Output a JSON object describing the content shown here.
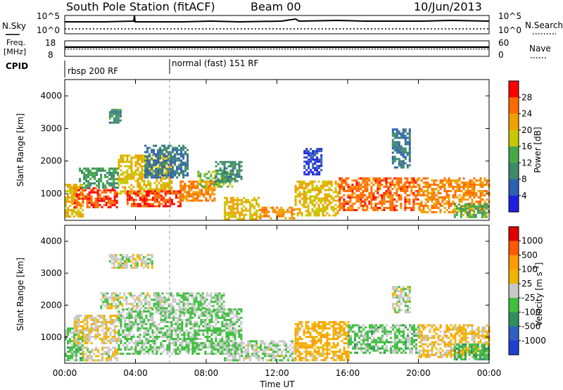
{
  "header": {
    "station": "South Pole Station (fitACF)",
    "beam": "Beam 00",
    "date": "10/Jun/2013"
  },
  "noise_panel": {
    "left_label": "N.Sky",
    "left_ticks": [
      "10^5",
      "10^0"
    ],
    "right_label": "N.Search",
    "right_ticks": [
      "10^5",
      "10^0"
    ]
  },
  "freq_panel": {
    "left_label_1": "Freq.",
    "left_label_2": "[MHz]",
    "left_ticks": [
      "18",
      "8"
    ],
    "right_label": "Nave",
    "right_ticks": [
      "60",
      "0"
    ]
  },
  "cpid": {
    "label": "CPID",
    "segments": [
      {
        "label": "rbsp 200 RF",
        "start_hour": 0
      },
      {
        "label": "normal (fast) 151 RF",
        "start_hour": 6
      }
    ]
  },
  "colors": {
    "power": [
      "#1f1fe0",
      "#2f5fb0",
      "#3f8a6a",
      "#47a84a",
      "#c8c800",
      "#f0a000",
      "#ff6a00",
      "#ff0000"
    ],
    "velocity": [
      "#e00000",
      "#ff5a00",
      "#ff9a00",
      "#f0b400",
      "#c8c8c8",
      "#3fbf3f",
      "#2f8f5f",
      "#2f5fbf",
      "#1f3fd0"
    ]
  },
  "chart_data": [
    {
      "type": "heatmap",
      "name": "power",
      "xlabel": "",
      "ylabel": "Slant Range [km]",
      "xlim": [
        0,
        24
      ],
      "ylim": [
        180,
        4500
      ],
      "yticks": [
        "1000",
        "2000",
        "3000",
        "4000"
      ],
      "colorbar": {
        "label": "Power [dB]",
        "ticks": [
          "28",
          "24",
          "20",
          "16",
          "12",
          "8",
          "4"
        ],
        "range": [
          0,
          32
        ]
      },
      "patches": [
        {
          "x0": 0.0,
          "x1": 1.0,
          "y0": 300,
          "y1": 1300,
          "level": 20
        },
        {
          "x0": 0.5,
          "x1": 3.0,
          "y0": 600,
          "y1": 1200,
          "level": 28
        },
        {
          "x0": 0.8,
          "x1": 3.0,
          "y0": 1200,
          "y1": 1800,
          "level": 12
        },
        {
          "x0": 2.5,
          "x1": 3.2,
          "y0": 3200,
          "y1": 3600,
          "level": 10
        },
        {
          "x0": 3.0,
          "x1": 6.0,
          "y0": 1000,
          "y1": 2200,
          "level": 20
        },
        {
          "x0": 3.5,
          "x1": 6.5,
          "y0": 600,
          "y1": 1100,
          "level": 28
        },
        {
          "x0": 4.5,
          "x1": 7.0,
          "y0": 1500,
          "y1": 2500,
          "level": 8
        },
        {
          "x0": 6.5,
          "x1": 8.5,
          "y0": 800,
          "y1": 1400,
          "level": 24
        },
        {
          "x0": 7.5,
          "x1": 9.5,
          "y0": 1200,
          "y1": 1700,
          "level": 16
        },
        {
          "x0": 8.5,
          "x1": 10.0,
          "y0": 1400,
          "y1": 2000,
          "level": 10
        },
        {
          "x0": 9.0,
          "x1": 11.0,
          "y0": 250,
          "y1": 900,
          "level": 20
        },
        {
          "x0": 11.0,
          "x1": 13.0,
          "y0": 250,
          "y1": 600,
          "level": 24
        },
        {
          "x0": 13.0,
          "x1": 15.5,
          "y0": 300,
          "y1": 1400,
          "level": 20
        },
        {
          "x0": 13.5,
          "x1": 14.5,
          "y0": 1600,
          "y1": 2400,
          "level": 4
        },
        {
          "x0": 15.5,
          "x1": 20.0,
          "y0": 500,
          "y1": 1500,
          "level": 26
        },
        {
          "x0": 18.5,
          "x1": 19.5,
          "y0": 1800,
          "y1": 3000,
          "level": 8
        },
        {
          "x0": 20.0,
          "x1": 24.0,
          "y0": 400,
          "y1": 1500,
          "level": 24
        },
        {
          "x0": 22.0,
          "x1": 24.0,
          "y0": 300,
          "y1": 700,
          "level": 14
        }
      ]
    },
    {
      "type": "heatmap",
      "name": "velocity",
      "xlabel": "Time UT",
      "ylabel": "Slant Range [km]",
      "xlim": [
        0,
        24
      ],
      "ylim": [
        180,
        4500
      ],
      "xticks": [
        "00:00",
        "04:00",
        "08:00",
        "12:00",
        "16:00",
        "20:00",
        "00:00"
      ],
      "yticks": [
        "1000",
        "2000",
        "3000",
        "4000"
      ],
      "colorbar": {
        "label": "Velocity [m s^-1]",
        "ticks": [
          "1000",
          "500",
          "100",
          "25",
          "-25",
          "-100",
          "-500",
          "-1000"
        ],
        "range": [
          -1500,
          1500
        ]
      },
      "patches": [
        {
          "x0": 0.0,
          "x1": 1.0,
          "y0": 300,
          "y1": 1300,
          "level": -300
        },
        {
          "x0": 0.5,
          "x1": 3.0,
          "y0": 800,
          "y1": 1700,
          "level": 150
        },
        {
          "x0": 1.0,
          "x1": 3.0,
          "y0": 300,
          "y1": 700,
          "level": 80
        },
        {
          "x0": 2.5,
          "x1": 5.0,
          "y0": 3200,
          "y1": 3600,
          "level": 0
        },
        {
          "x0": 2.0,
          "x1": 5.5,
          "y0": 1900,
          "y1": 2400,
          "level": 0
        },
        {
          "x0": 3.0,
          "x1": 10.0,
          "y0": 500,
          "y1": 1900,
          "level": -200
        },
        {
          "x0": 5.0,
          "x1": 9.0,
          "y0": 1800,
          "y1": 2400,
          "level": -150
        },
        {
          "x0": 9.0,
          "x1": 13.0,
          "y0": 250,
          "y1": 900,
          "level": -80
        },
        {
          "x0": 13.0,
          "x1": 16.0,
          "y0": 300,
          "y1": 1500,
          "level": 400
        },
        {
          "x0": 16.0,
          "x1": 20.0,
          "y0": 500,
          "y1": 1400,
          "level": -250
        },
        {
          "x0": 18.5,
          "x1": 19.5,
          "y0": 1800,
          "y1": 2600,
          "level": 0
        },
        {
          "x0": 20.0,
          "x1": 24.0,
          "y0": 400,
          "y1": 1400,
          "level": 300
        },
        {
          "x0": 22.0,
          "x1": 24.0,
          "y0": 300,
          "y1": 800,
          "level": -400
        }
      ]
    }
  ]
}
